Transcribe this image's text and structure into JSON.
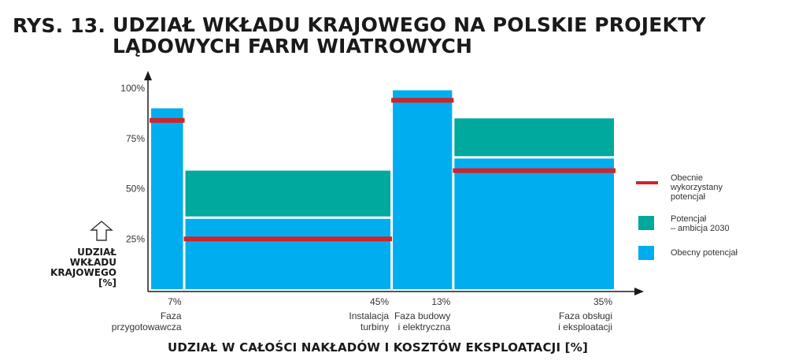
{
  "figure": {
    "label": "RYS. 13.",
    "title": "UDZIAŁ WKŁADU KRAJOWEGO NA POLSKIE PROJEKTY LĄDOWYCH FARM WIATROWYCH"
  },
  "chart_data": {
    "type": "bar",
    "subtype": "variable-width stacked (marimekko)",
    "ylabel": "UDZIAŁ\nWKŁADU\nKRAJOWEGO\n[%]",
    "xlabel": "UDZIAŁ W CAŁOŚCI NAKŁADÓW I KOSZTÓW EKSPLOATACJI [%]",
    "ylim": [
      0,
      100
    ],
    "yticks": [
      "25%",
      "50%",
      "75%",
      "100%"
    ],
    "grid": false,
    "legend_position": "right",
    "categories": [
      {
        "name": "Faza\nprzygotowawcza",
        "width_label": "7%",
        "width": 7
      },
      {
        "name": "Instalacja\nturbiny",
        "width_label": "45%",
        "width": 45
      },
      {
        "name": "Faza budowy\ni elektryczna",
        "width_label": "13%",
        "width": 13
      },
      {
        "name": "Faza obsługi\ni eksploatacji",
        "width_label": "35%",
        "width": 35
      }
    ],
    "series": [
      {
        "name": "Obecny potencjał",
        "kind": "bar",
        "color": "#00aeef",
        "values": [
          90,
          35,
          99,
          65
        ]
      },
      {
        "name": "Potencjał\n– ambicja 2030",
        "kind": "bar",
        "color": "#00a99d",
        "values": [
          0,
          24,
          0,
          20
        ]
      },
      {
        "name": "Obecnie\nwykorzystany\npotencjał",
        "kind": "line",
        "color": "#d2232a",
        "values": [
          84,
          25,
          94,
          59
        ]
      }
    ]
  }
}
